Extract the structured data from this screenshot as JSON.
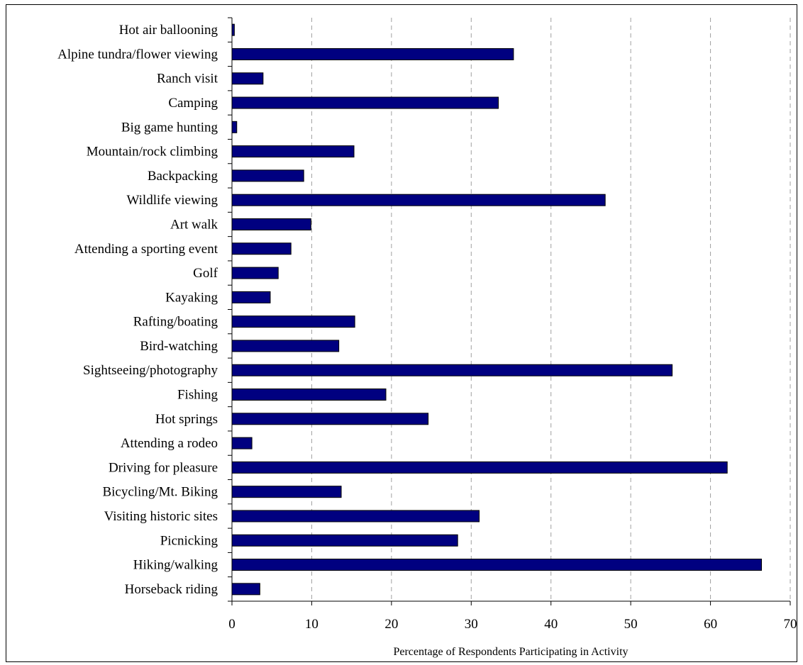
{
  "chart_data": {
    "type": "bar",
    "orientation": "horizontal",
    "title": "",
    "xlabel": "Percentage of Respondents Participating in Activity",
    "ylabel": "",
    "xlim": [
      0,
      70
    ],
    "xticks": [
      0,
      10,
      20,
      30,
      40,
      50,
      60,
      70
    ],
    "grid": "vertical dashed",
    "bar_color": "#000080",
    "categories": [
      "Hot air ballooning",
      "Alpine tundra/flower viewing",
      "Ranch visit",
      "Camping",
      "Big game hunting",
      "Mountain/rock climbing",
      "Backpacking",
      "Wildlife viewing",
      "Art walk",
      "Attending a sporting event",
      "Golf",
      "Kayaking",
      "Rafting/boating",
      "Bird-watching",
      "Sightseeing/photography",
      "Fishing",
      "Hot springs",
      "Attending a rodeo",
      "Driving for pleasure",
      "Bicycling/Mt. Biking",
      "Visiting historic sites",
      "Picnicking",
      "Hiking/walking",
      "Horseback riding"
    ],
    "values": [
      0.3,
      35.3,
      3.9,
      33.4,
      0.6,
      15.3,
      9.0,
      46.8,
      9.9,
      7.4,
      5.8,
      4.8,
      15.4,
      13.4,
      55.2,
      19.3,
      24.6,
      2.5,
      62.1,
      13.7,
      31.0,
      28.3,
      66.4,
      3.5
    ]
  }
}
